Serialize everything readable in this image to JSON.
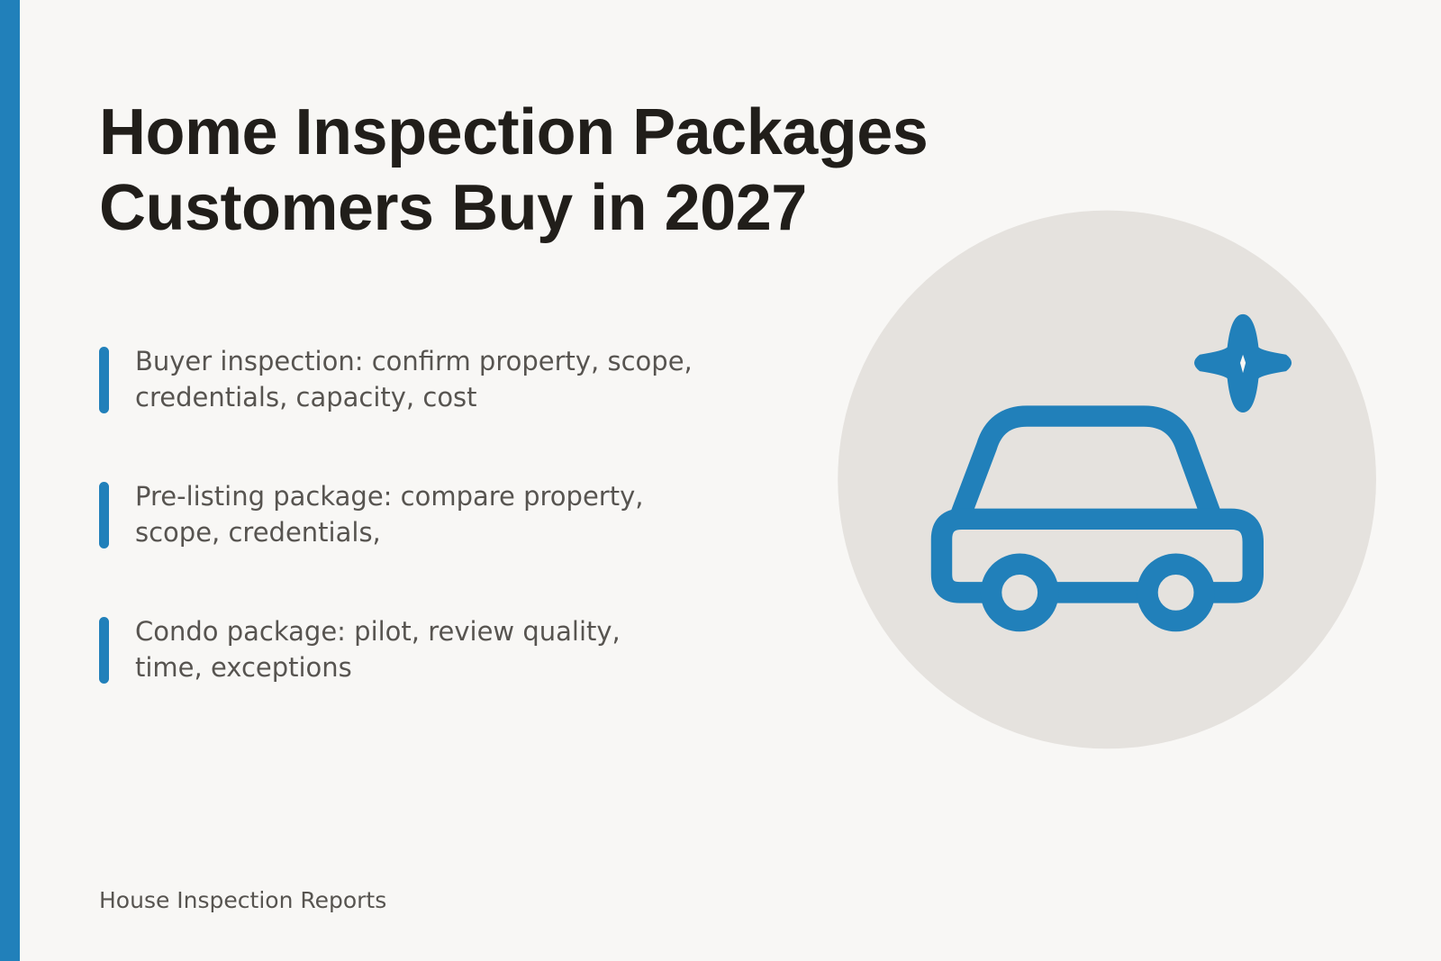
{
  "header": {
    "title": "Home Inspection Packages Customers Buy in 2027"
  },
  "items": [
    {
      "text": "Buyer inspection: confirm property, scope, credentials, capacity, cost"
    },
    {
      "text": "Pre-listing package: compare property, scope, credentials,"
    },
    {
      "text": "Condo package: pilot, review quality, time, exceptions"
    }
  ],
  "footer": {
    "text": "House Inspection Reports"
  }
}
